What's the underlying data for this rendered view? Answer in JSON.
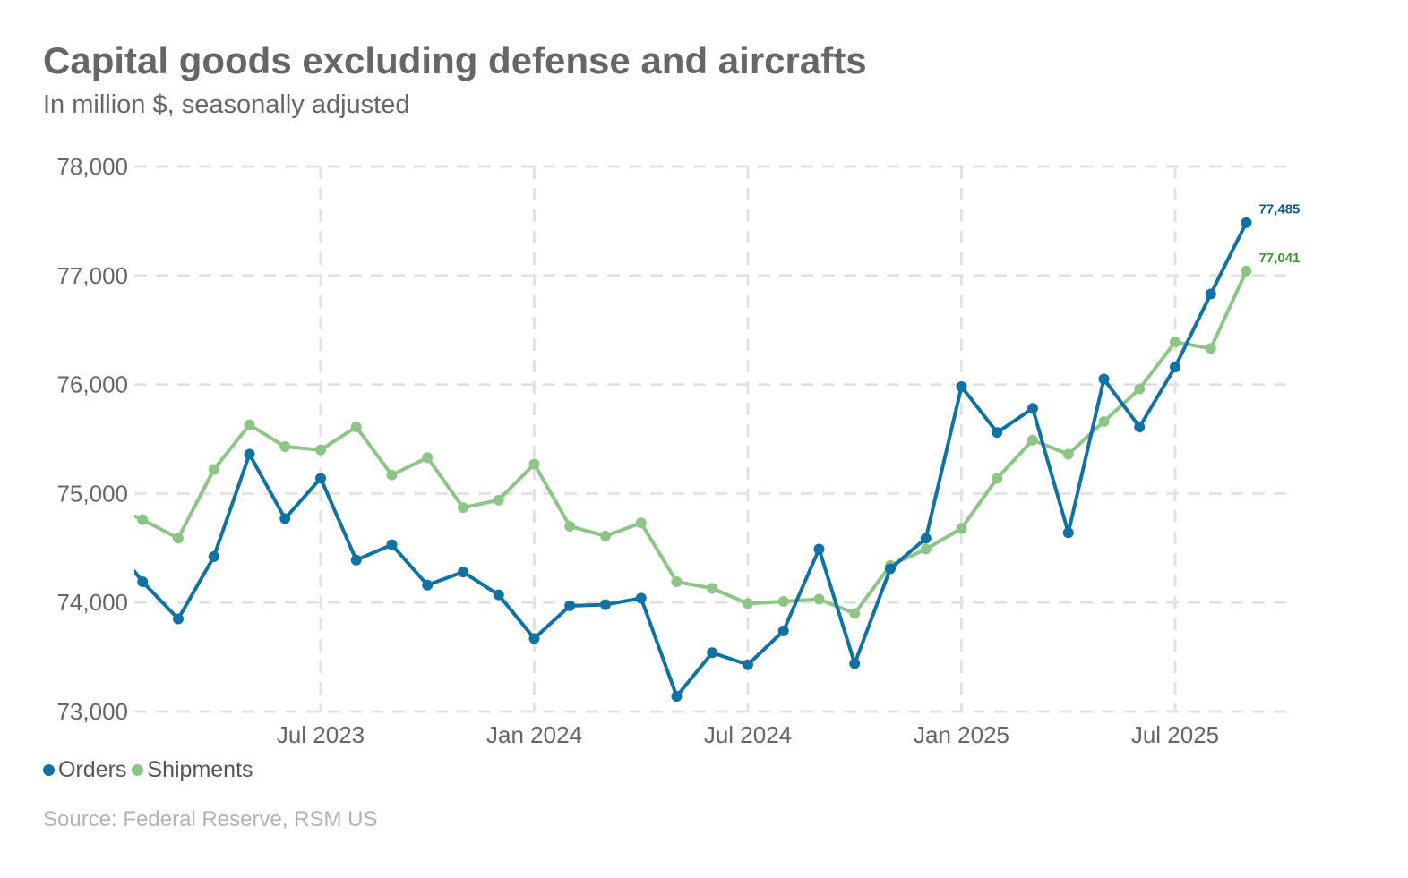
{
  "header": {
    "title": "Capital goods excluding defense and aircrafts",
    "subtitle": "In million $, seasonally adjusted"
  },
  "legend": {
    "items": [
      {
        "label": "Orders",
        "color": "#0f71a4"
      },
      {
        "label": "Shipments",
        "color": "#8cc585"
      }
    ]
  },
  "footer": {
    "source": "Source: Federal Reserve, RSM US"
  },
  "chart_data": {
    "type": "line",
    "title": "Capital goods excluding defense and aircrafts",
    "subtitle": "In million $, seasonally adjusted",
    "xlabel": "",
    "ylabel": "",
    "ylim": [
      73000,
      78000
    ],
    "yticks": [
      73000,
      74000,
      75000,
      76000,
      77000,
      78000
    ],
    "ytick_labels": [
      "73,000",
      "74,000",
      "75,000",
      "76,000",
      "77,000",
      "78,000"
    ],
    "xticks": [
      "2023-07",
      "2024-01",
      "2024-07",
      "2025-01",
      "2025-07"
    ],
    "xtick_labels": [
      "Jul 2023",
      "Jan 2024",
      "Jul 2024",
      "Jan 2025",
      "Jul 2025"
    ],
    "grid": true,
    "legend_position": "bottom-left",
    "x": [
      "2023-01",
      "2023-02",
      "2023-03",
      "2023-04",
      "2023-05",
      "2023-06",
      "2023-07",
      "2023-08",
      "2023-09",
      "2023-10",
      "2023-11",
      "2023-12",
      "2024-01",
      "2024-02",
      "2024-03",
      "2024-04",
      "2024-05",
      "2024-06",
      "2024-07",
      "2024-08",
      "2024-09",
      "2024-10",
      "2024-11",
      "2024-12",
      "2025-01",
      "2025-02",
      "2025-03",
      "2025-04",
      "2025-05",
      "2025-06",
      "2025-07",
      "2025-08",
      "2025-09"
    ],
    "series": [
      {
        "name": "Orders",
        "color": "#0f71a4",
        "values": [
          74600,
          74190,
          73850,
          74420,
          75360,
          74770,
          75140,
          74390,
          74530,
          74160,
          74280,
          74070,
          73670,
          73970,
          73980,
          74040,
          73140,
          73540,
          73430,
          73740,
          74490,
          73440,
          74310,
          74590,
          75980,
          75560,
          75780,
          74640,
          76050,
          75610,
          76160,
          76830,
          77485
        ],
        "end_label": "77,485"
      },
      {
        "name": "Shipments",
        "color": "#8cc585",
        "values": [
          74900,
          74760,
          74590,
          75220,
          75630,
          75430,
          75400,
          75610,
          75170,
          75330,
          74870,
          74940,
          75270,
          74700,
          74610,
          74730,
          74190,
          74130,
          73990,
          74010,
          74030,
          73900,
          74340,
          74490,
          74680,
          75140,
          75490,
          75360,
          75660,
          75960,
          76390,
          76330,
          77041
        ],
        "end_label": "77,041"
      }
    ],
    "end_label_colors": {
      "Orders": "#0d5a85",
      "Shipments": "#3b9a2c"
    }
  }
}
